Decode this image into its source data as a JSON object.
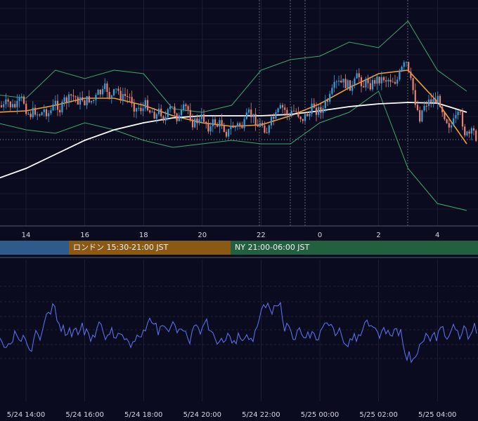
{
  "colors": {
    "background": "#0a0b1e",
    "grid": "#2a2b40",
    "candle_up": "#3a9fd8",
    "candle_down": "#e8826e",
    "ma_short": "#f0a030",
    "ma_long": "#ffffff",
    "bollinger": "#3fa86a",
    "oscillator": "#5b6ee8",
    "tokyo_session": "#2f5b8a",
    "london_session": "#8a5a14",
    "ny_session": "#236040"
  },
  "sessions": [
    {
      "label": "",
      "color": "#2f5b8a"
    },
    {
      "label": "ロンドン 15:30-21:00 JST",
      "color": "#8a5a14"
    },
    {
      "label": "NY 21:00-06:00 JST",
      "color": "#236040"
    }
  ],
  "top_axis": {
    "labels": [
      "14",
      "16",
      "18",
      "20",
      "22",
      "0",
      "2",
      "4"
    ]
  },
  "bottom_axis": {
    "labels": [
      "5/24 14:00",
      "5/24 16:00",
      "5/24 18:00",
      "5/24 20:00",
      "5/24 22:00",
      "5/25 00:00",
      "5/25 02:00",
      "5/25 04:00"
    ]
  },
  "chart_data": [
    {
      "type": "candlestick",
      "title": "",
      "x_hours": [
        14,
        16,
        18,
        20,
        22,
        24,
        26,
        28
      ],
      "hline": 0.42,
      "series": [
        {
          "name": "",
          "kind": "bollinger-upper",
          "points": [
            [
              13,
              135
            ],
            [
              14,
              140
            ],
            [
              15,
              100
            ],
            [
              16,
              112
            ],
            [
              17,
              100
            ],
            [
              18,
              105
            ],
            [
              19,
              155
            ],
            [
              20,
              160
            ],
            [
              21,
              150
            ],
            [
              22,
              100
            ],
            [
              23,
              85
            ],
            [
              24,
              80
            ],
            [
              25,
              60
            ],
            [
              26,
              68
            ],
            [
              27,
              30
            ],
            [
              28,
              100
            ],
            [
              29,
              130
            ]
          ]
        },
        {
          "name": "",
          "kind": "bollinger-lower",
          "points": [
            [
              13,
              175
            ],
            [
              14,
              185
            ],
            [
              15,
              190
            ],
            [
              16,
              175
            ],
            [
              17,
              185
            ],
            [
              18,
              200
            ],
            [
              19,
              210
            ],
            [
              20,
              205
            ],
            [
              21,
              200
            ],
            [
              22,
              205
            ],
            [
              23,
              205
            ],
            [
              24,
              175
            ],
            [
              25,
              160
            ],
            [
              26,
              130
            ],
            [
              27,
              240
            ],
            [
              28,
              290
            ],
            [
              29,
              300
            ]
          ]
        },
        {
          "name": "",
          "kind": "ma-short",
          "points": [
            [
              13,
              160
            ],
            [
              14,
              158
            ],
            [
              15,
              150
            ],
            [
              16,
              140
            ],
            [
              17,
              140
            ],
            [
              18,
              150
            ],
            [
              19,
              165
            ],
            [
              20,
              175
            ],
            [
              21,
              180
            ],
            [
              22,
              178
            ],
            [
              23,
              165
            ],
            [
              24,
              148
            ],
            [
              25,
              125
            ],
            [
              26,
              105
            ],
            [
              27,
              100
            ],
            [
              28,
              145
            ],
            [
              29,
              205
            ]
          ]
        },
        {
          "name": "",
          "kind": "ma-long",
          "points": [
            [
              13,
              255
            ],
            [
              14,
              240
            ],
            [
              15,
              220
            ],
            [
              16,
              200
            ],
            [
              17,
              185
            ],
            [
              18,
              175
            ],
            [
              19,
              168
            ],
            [
              20,
              165
            ],
            [
              21,
              165
            ],
            [
              22,
              165
            ],
            [
              23,
              163
            ],
            [
              24,
              158
            ],
            [
              25,
              152
            ],
            [
              26,
              148
            ],
            [
              27,
              146
            ],
            [
              28,
              147
            ],
            [
              29,
              160
            ]
          ]
        }
      ]
    },
    {
      "type": "line",
      "title": "",
      "series": [
        {
          "name": "",
          "kind": "oscillator"
        }
      ]
    }
  ]
}
